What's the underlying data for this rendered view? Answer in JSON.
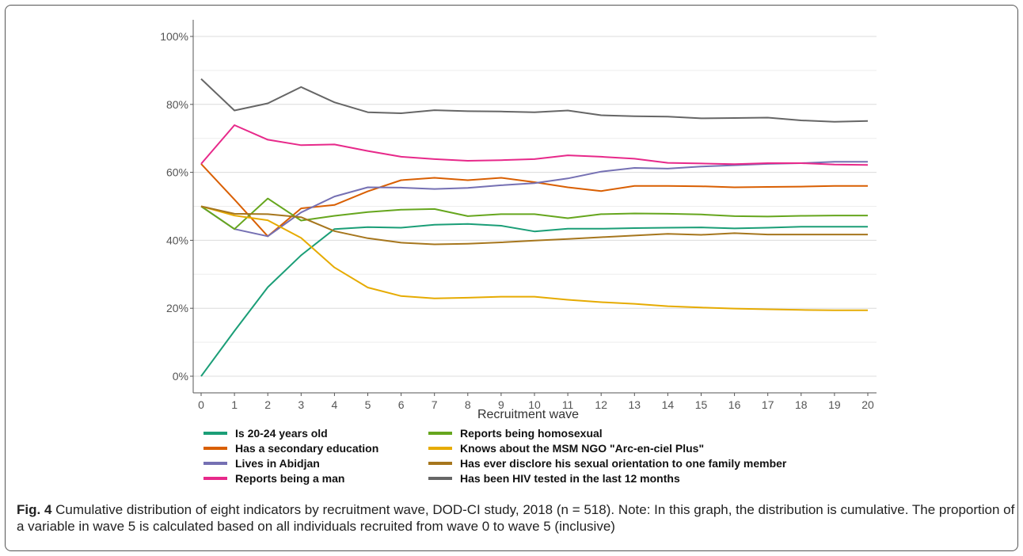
{
  "caption": {
    "label": "Fig. 4",
    "text": " Cumulative distribution of eight indicators by recruitment wave, DOD-CI study, 2018 (n = 518). Note: In this graph, the distribution is cumulative. The proportion of a variable in wave 5 is calculated based on all individuals recruited from wave 0 to wave 5 (inclusive)"
  },
  "chart_data": {
    "type": "line",
    "title": "",
    "xlabel": "Recruitment wave",
    "ylabel": "",
    "x": [
      0,
      1,
      2,
      3,
      4,
      5,
      6,
      7,
      8,
      9,
      10,
      11,
      12,
      13,
      14,
      15,
      16,
      17,
      18,
      19,
      20
    ],
    "ylim": [
      0,
      100
    ],
    "yticks": [
      "0%",
      "20%",
      "40%",
      "60%",
      "80%",
      "100%"
    ],
    "ytick_values": [
      0,
      20,
      40,
      60,
      80,
      100
    ],
    "grid": "horizontal",
    "legend_position": "bottom",
    "series": [
      {
        "name": "Is 20-24 years old",
        "color": "#1b9e77",
        "values": [
          0,
          13.3,
          26.2,
          35.6,
          43.3,
          43.9,
          43.7,
          44.6,
          44.8,
          44.3,
          42.6,
          43.4,
          43.4,
          43.6,
          43.7,
          43.8,
          43.5,
          43.7,
          44.0,
          44.0,
          44.0
        ]
      },
      {
        "name": "Has a secondary education",
        "color": "#d95f02",
        "values": [
          62.5,
          52.0,
          41.2,
          49.4,
          50.4,
          54.4,
          57.7,
          58.4,
          57.7,
          58.4,
          57.1,
          55.6,
          54.5,
          56.0,
          56.0,
          55.9,
          55.6,
          55.7,
          55.8,
          56.0,
          56.0
        ]
      },
      {
        "name": "Lives in Abidjan",
        "color": "#7570b3",
        "values": [
          50.0,
          43.3,
          41.2,
          48.2,
          52.9,
          55.6,
          55.5,
          55.1,
          55.4,
          56.2,
          56.8,
          58.2,
          60.2,
          61.3,
          61.1,
          61.7,
          62.1,
          62.5,
          62.7,
          63.1,
          63.1
        ]
      },
      {
        "name": "Reports being a man",
        "color": "#e7298a",
        "values": [
          62.5,
          73.9,
          69.6,
          68.0,
          68.2,
          66.3,
          64.6,
          63.9,
          63.4,
          63.6,
          63.9,
          65.0,
          64.6,
          64.0,
          62.8,
          62.6,
          62.4,
          62.7,
          62.7,
          62.3,
          62.2
        ]
      },
      {
        "name": "Reports being homosexual",
        "color": "#66a61e",
        "values": [
          50.0,
          43.3,
          52.3,
          45.8,
          47.2,
          48.3,
          49.0,
          49.2,
          47.1,
          47.7,
          47.7,
          46.5,
          47.7,
          47.9,
          47.8,
          47.6,
          47.1,
          47.0,
          47.2,
          47.3,
          47.3
        ]
      },
      {
        "name": "Knows about the MSM NGO \"Arc-en-ciel Plus\"",
        "color": "#e6ab02",
        "values": [
          50.0,
          47.3,
          45.9,
          40.7,
          32.0,
          26.1,
          23.6,
          22.9,
          23.1,
          23.4,
          23.4,
          22.5,
          21.8,
          21.3,
          20.6,
          20.2,
          19.9,
          19.7,
          19.5,
          19.4,
          19.4
        ]
      },
      {
        "name": "Has ever disclore his sexual orientation to one family member",
        "color": "#a6761d",
        "values": [
          50.0,
          47.8,
          47.7,
          46.8,
          42.7,
          40.6,
          39.3,
          38.8,
          39.0,
          39.4,
          39.9,
          40.4,
          40.9,
          41.4,
          41.9,
          41.6,
          42.1,
          41.7,
          41.7,
          41.7,
          41.7
        ]
      },
      {
        "name": "Has been HIV tested in the last 12 months",
        "color": "#666666",
        "values": [
          87.5,
          78.2,
          80.3,
          85.1,
          80.6,
          77.7,
          77.4,
          78.3,
          78.0,
          77.9,
          77.7,
          78.2,
          76.8,
          76.5,
          76.4,
          75.9,
          76.0,
          76.1,
          75.3,
          74.9,
          75.1
        ]
      }
    ]
  }
}
